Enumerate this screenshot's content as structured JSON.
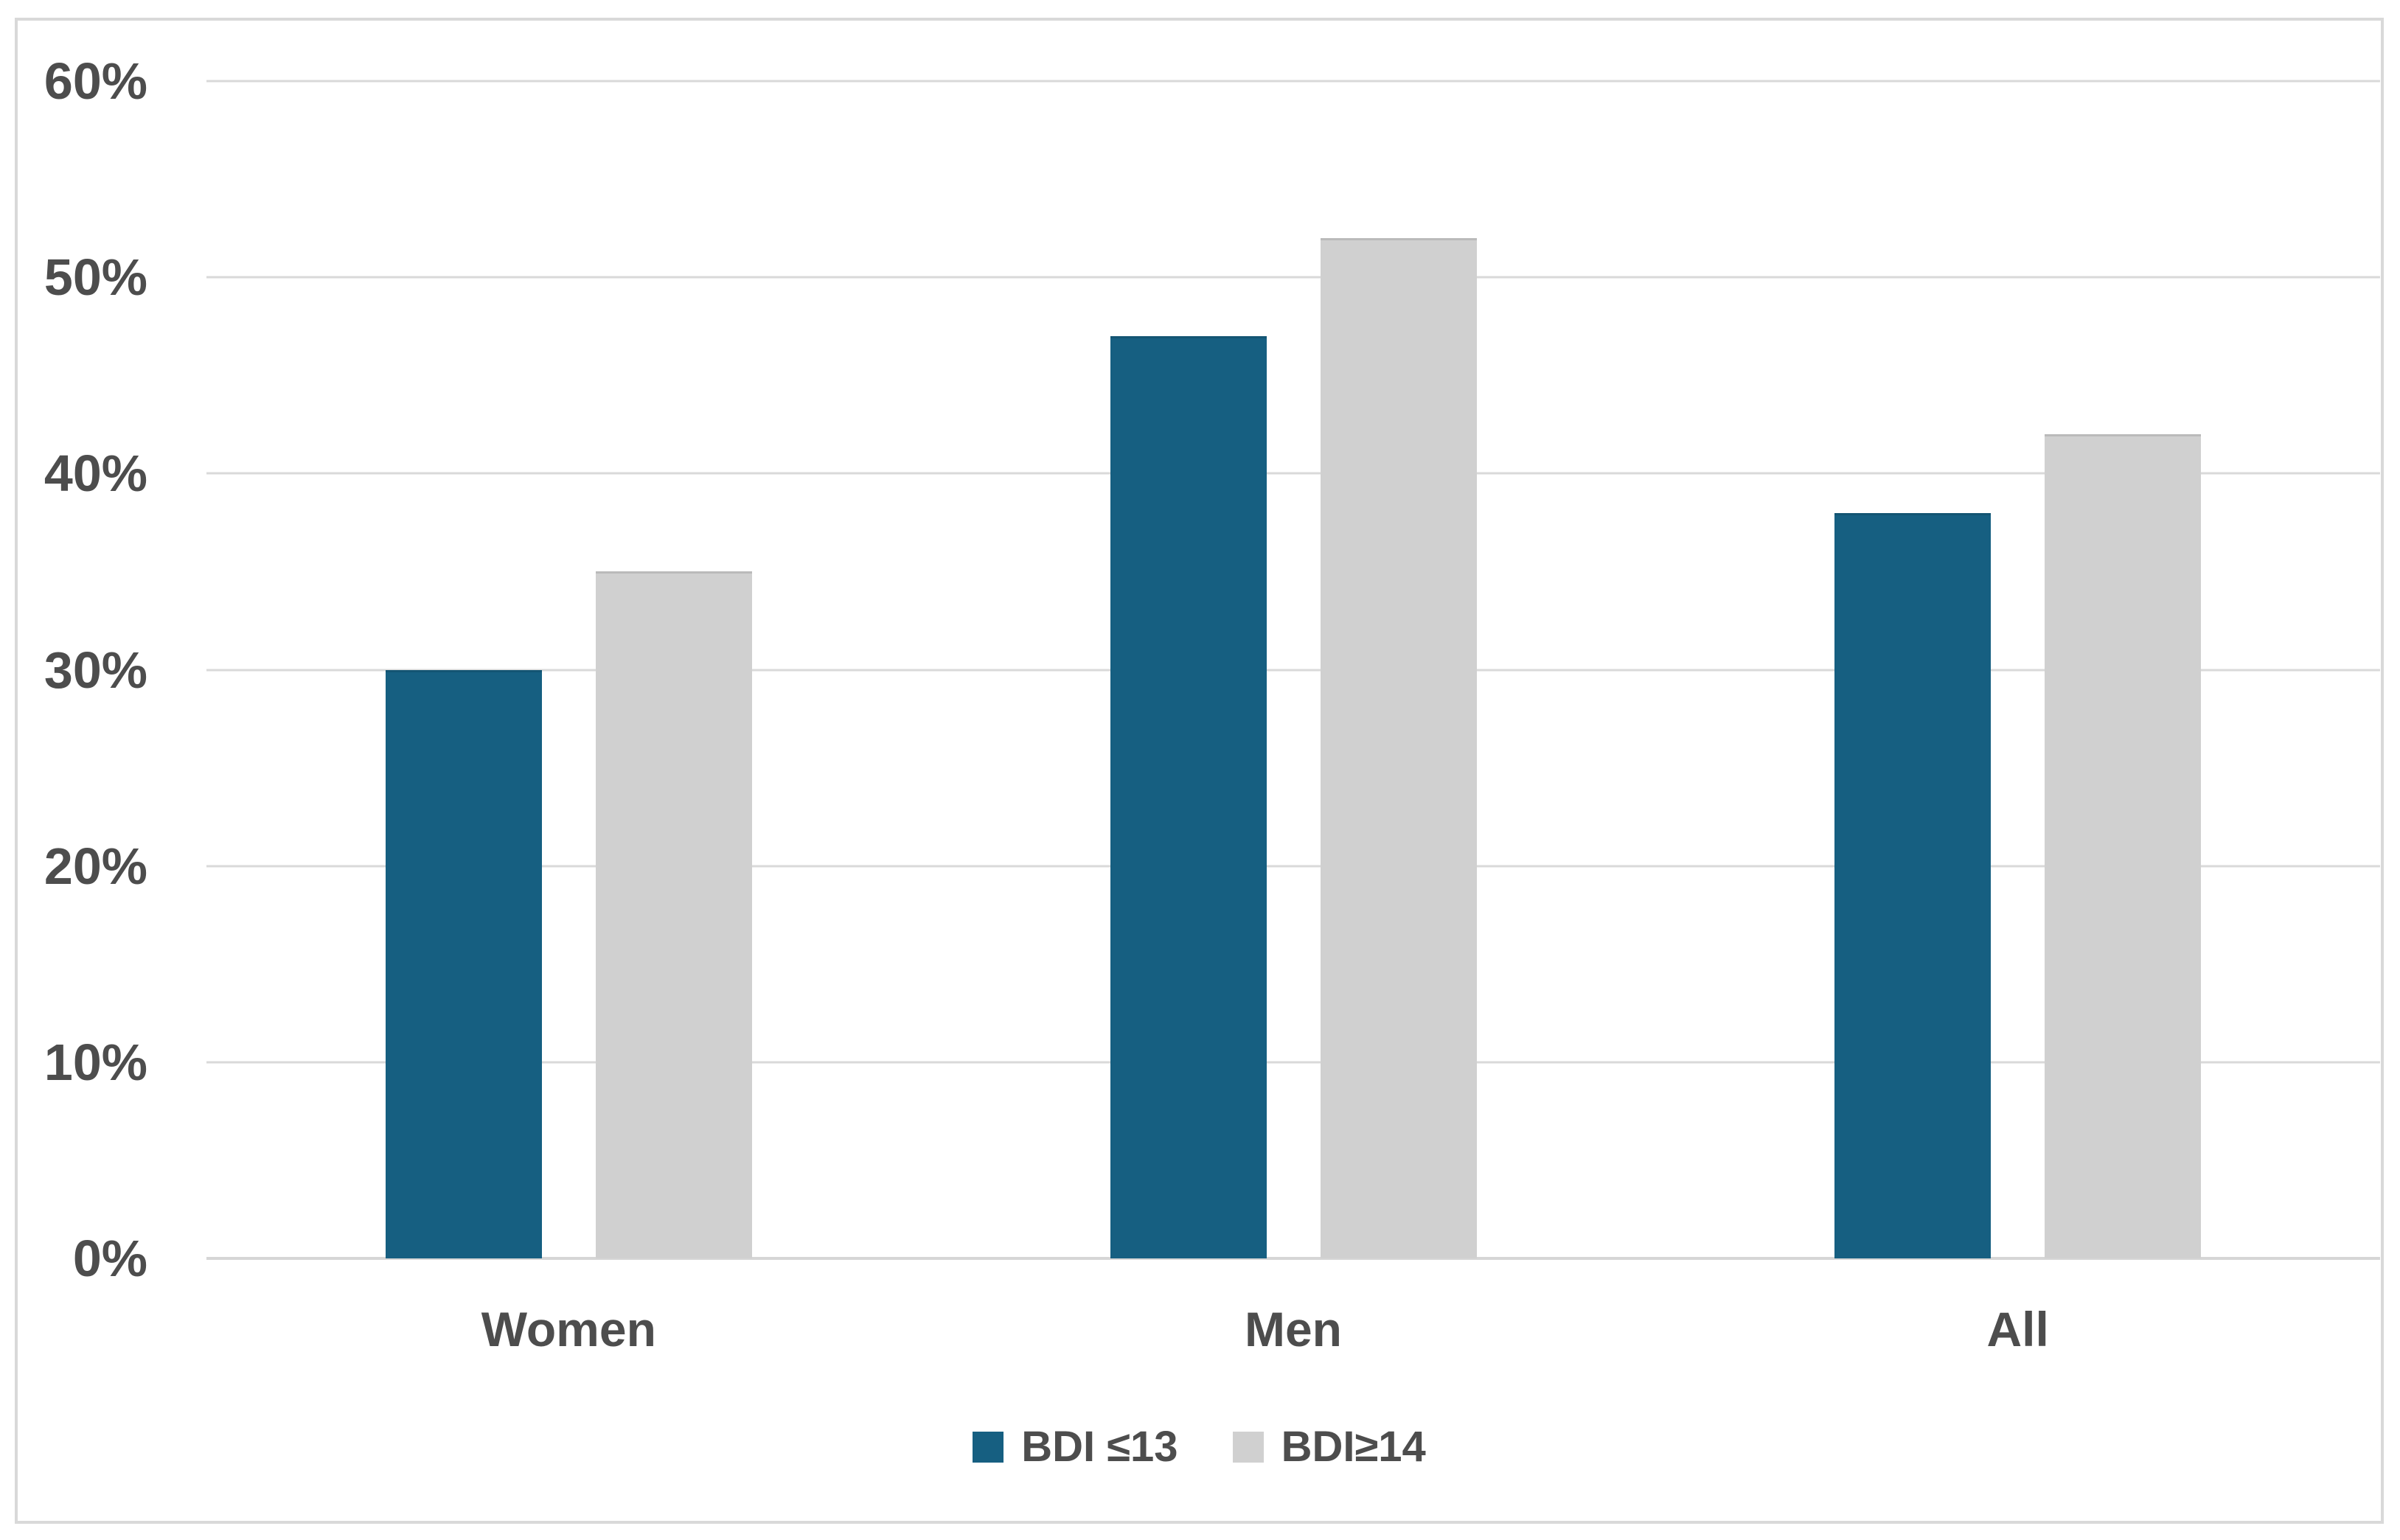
{
  "chart_data": {
    "type": "bar",
    "categories": [
      "Women",
      "Men",
      "All"
    ],
    "series": [
      {
        "name": "BDI ≤13",
        "values": [
          30,
          47,
          38
        ],
        "color": "#165F81"
      },
      {
        "name": "BDI≥14",
        "values": [
          35,
          52,
          42
        ],
        "color": "#D0D0D0"
      }
    ],
    "title": "",
    "xlabel": "",
    "ylabel": "",
    "ylim": [
      0,
      60
    ],
    "yticks": [
      {
        "label": "60%",
        "value": 60
      },
      {
        "label": "50%",
        "value": 50
      },
      {
        "label": "40%",
        "value": 40
      },
      {
        "label": "30%",
        "value": 30
      },
      {
        "label": "20%",
        "value": 20
      },
      {
        "label": "10%",
        "value": 10
      },
      {
        "label": "0%",
        "value": 0
      }
    ],
    "grid": true,
    "legend_position": "bottom"
  },
  "style": {
    "series1_color": "#165F81",
    "series2_color": "#D0D0D0",
    "gridline_color": "#D9D9D9",
    "frame_border_color": "#D9D9D9",
    "text_color": "#4D4D4D",
    "background_color": "#FFFFFF"
  }
}
